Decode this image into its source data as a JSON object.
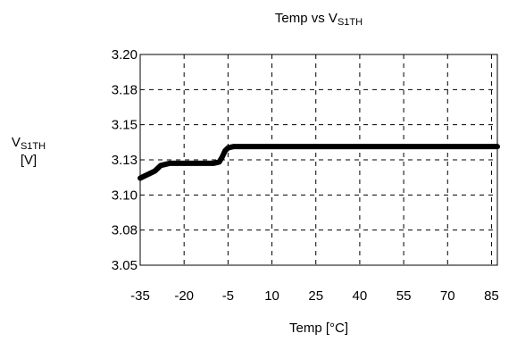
{
  "chart_data": {
    "type": "line",
    "title": {
      "main": "Temp vs V",
      "sub": "S1TH"
    },
    "xlabel": "Temp [°C]",
    "ylabel": {
      "main": "V",
      "sub": "S1TH",
      "unit": "[V]"
    },
    "xlim": [
      -35,
      87
    ],
    "ylim": [
      3.05,
      3.2
    ],
    "x_ticks": [
      -35,
      -20,
      -5,
      10,
      25,
      40,
      55,
      70,
      85
    ],
    "x_tick_labels": [
      "-35",
      "-20",
      "-5",
      "10",
      "25",
      "40",
      "55",
      "70",
      "85"
    ],
    "y_ticks": [
      3.05,
      3.075,
      3.1,
      3.125,
      3.15,
      3.175,
      3.2
    ],
    "y_tick_labels": [
      "3.05",
      "3.08",
      "3.10",
      "3.13",
      "3.15",
      "3.18",
      "3.20"
    ],
    "grid": true,
    "series": [
      {
        "color": "#000000",
        "x": [
          -35,
          -30,
          -28,
          -25,
          -20,
          -15,
          -10,
          -8,
          -7,
          -6,
          -5,
          -3,
          0,
          10,
          25,
          40,
          55,
          70,
          87
        ],
        "y": [
          3.112,
          3.117,
          3.121,
          3.1225,
          3.1225,
          3.1225,
          3.1225,
          3.1235,
          3.127,
          3.1315,
          3.1335,
          3.1345,
          3.1345,
          3.1345,
          3.1345,
          3.1345,
          3.1345,
          3.1345,
          3.1345
        ]
      }
    ]
  }
}
